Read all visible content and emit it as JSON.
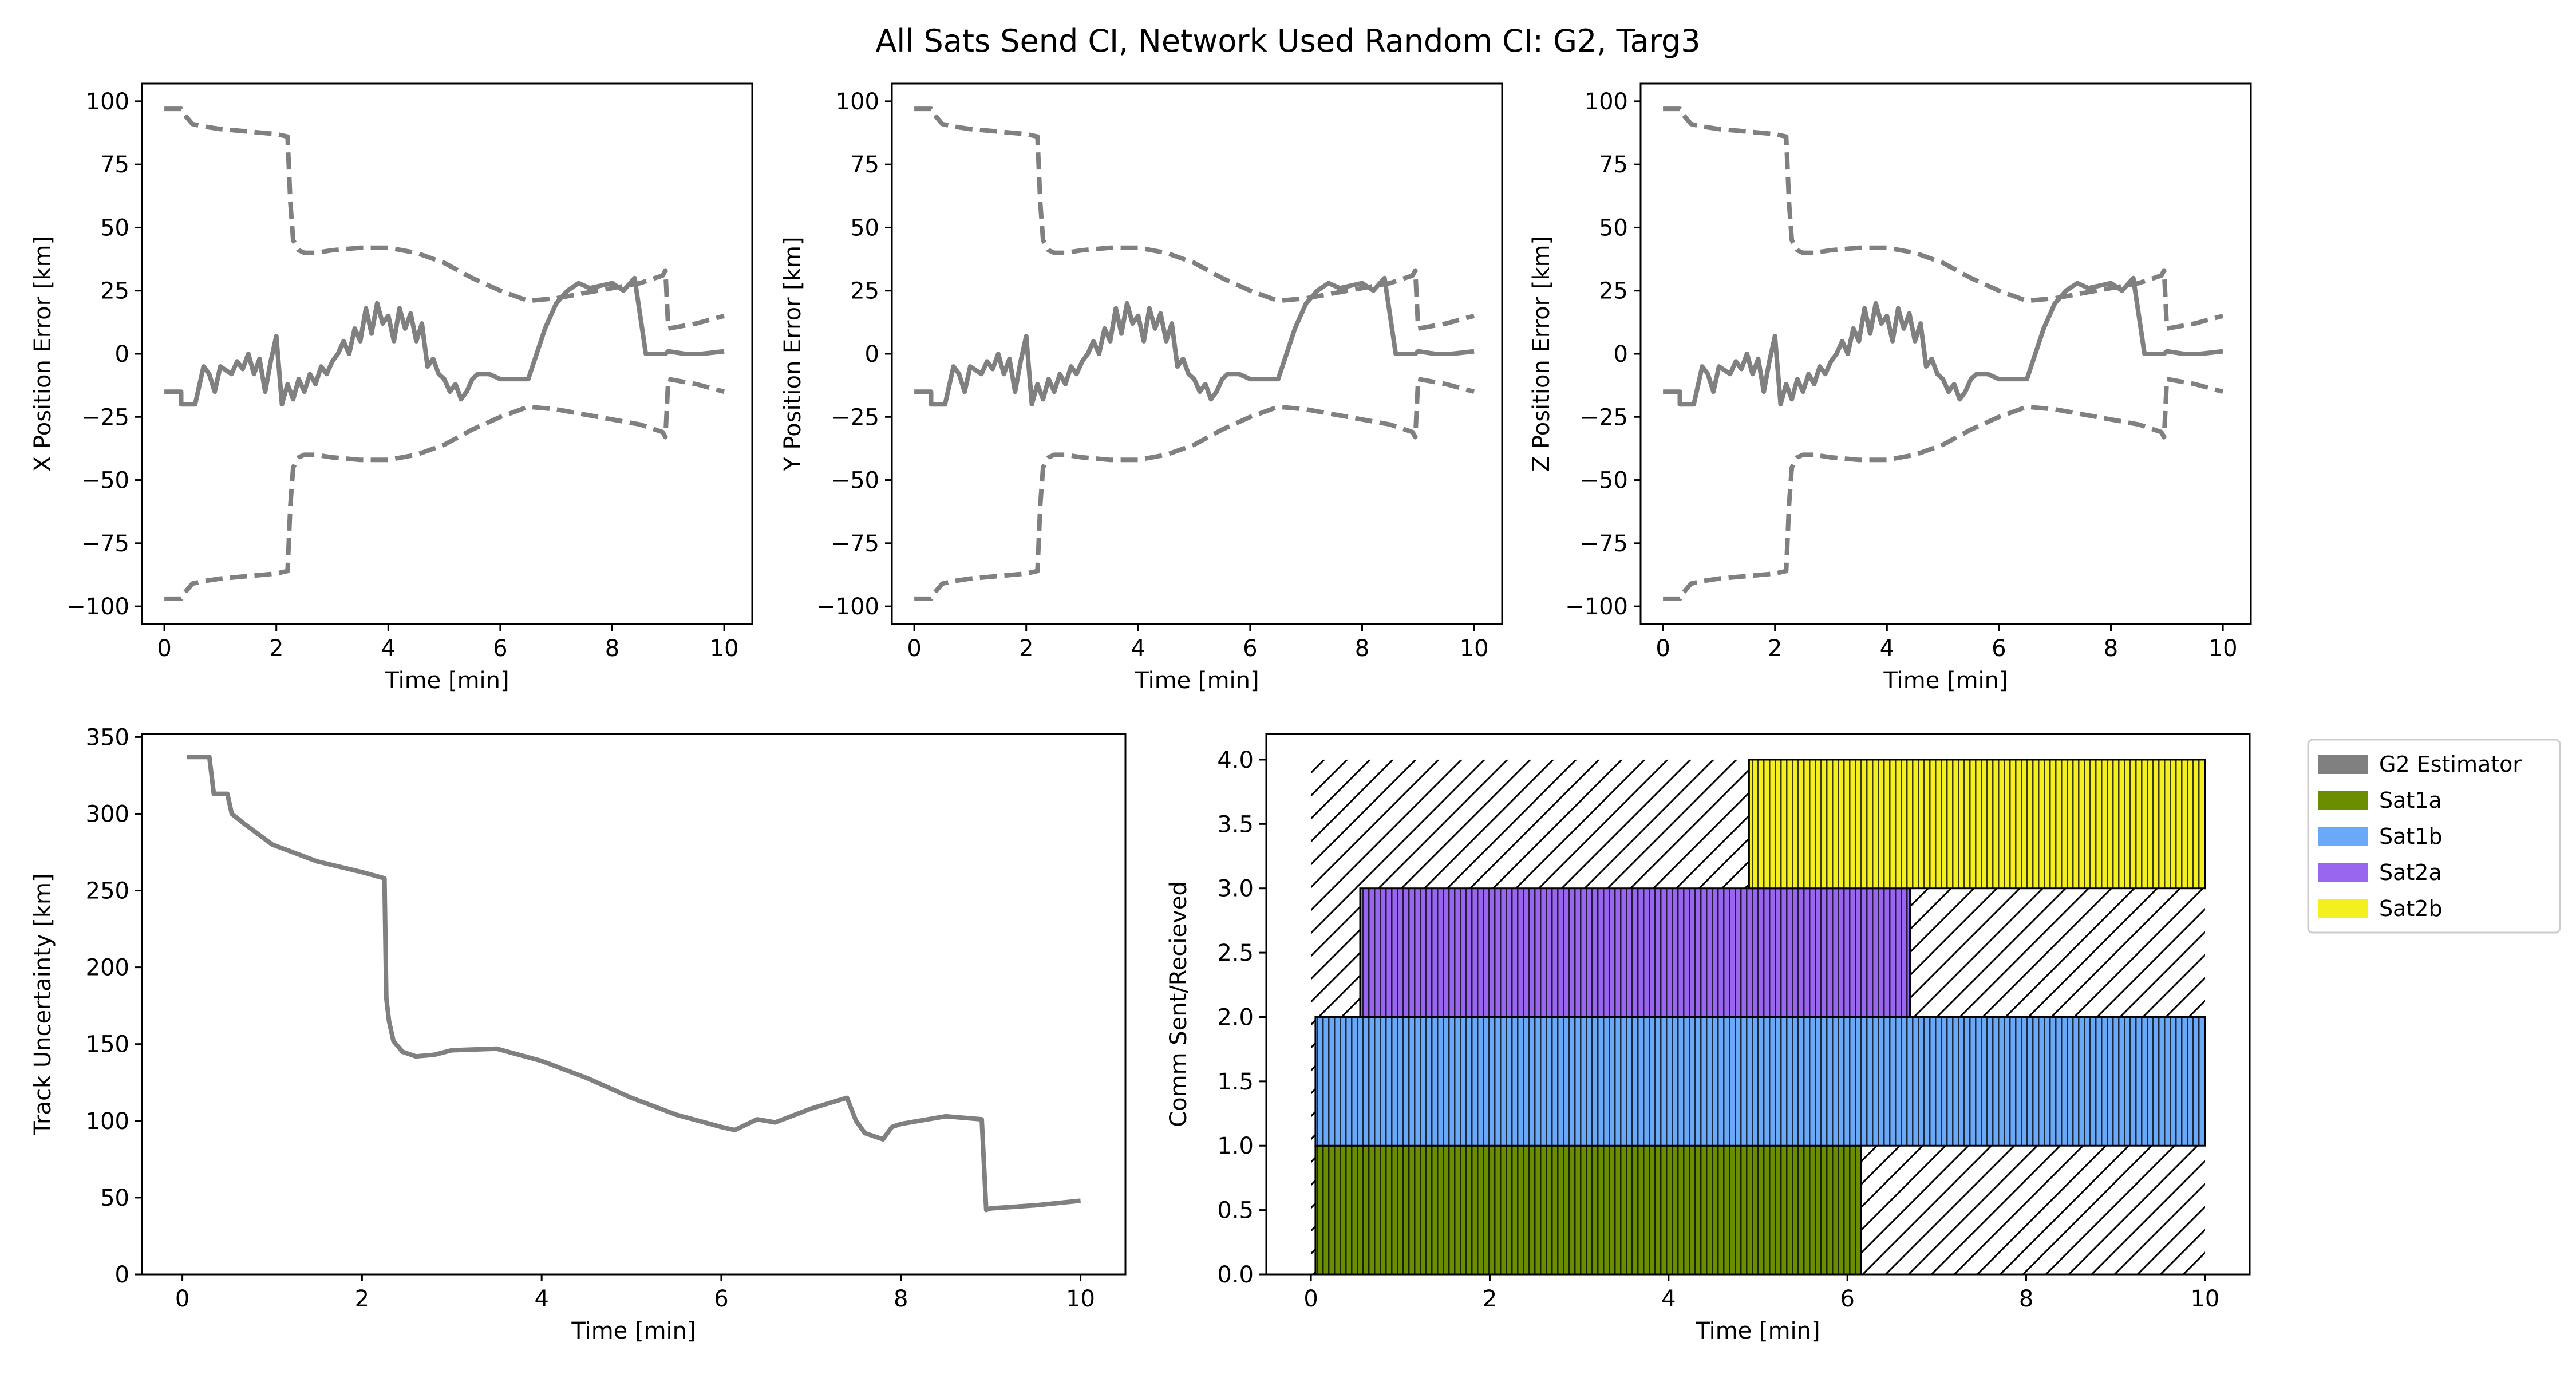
{
  "title": "All Sats Send CI, Network Used Random CI: G2, Targ3",
  "colors": {
    "estimator": "#808080",
    "sat1a": "#6b8e00",
    "sat1b": "#6aa8f8",
    "sat2a": "#9966f0",
    "sat2b": "#f4f020"
  },
  "chart_data": [
    {
      "type": "line",
      "xlabel": "Time [min]",
      "ylabel": "X Position Error [km]",
      "xlim": [
        -0.4,
        10.5
      ],
      "ylim": [
        -107,
        107
      ],
      "xticks": [
        0,
        2,
        4,
        6,
        8,
        10
      ],
      "yticks": [
        100,
        75,
        50,
        25,
        0,
        -25,
        -50,
        -75,
        -100
      ],
      "series": [
        {
          "style": "solid",
          "x": [
            0.0,
            0.3,
            0.3,
            0.55,
            0.7,
            0.8,
            0.9,
            1.0,
            1.2,
            1.3,
            1.4,
            1.5,
            1.6,
            1.7,
            1.8,
            1.9,
            2.0,
            2.1,
            2.2,
            2.3,
            2.4,
            2.5,
            2.6,
            2.7,
            2.8,
            2.9,
            3.0,
            3.1,
            3.2,
            3.3,
            3.4,
            3.5,
            3.6,
            3.7,
            3.8,
            3.9,
            4.0,
            4.1,
            4.2,
            4.3,
            4.4,
            4.5,
            4.6,
            4.7,
            4.8,
            4.9,
            5.0,
            5.1,
            5.2,
            5.3,
            5.4,
            5.5,
            5.6,
            5.7,
            5.8,
            5.9,
            6.0,
            6.2,
            6.5,
            6.8,
            7.0,
            7.2,
            7.4,
            7.6,
            7.8,
            8.0,
            8.2,
            8.4,
            8.6,
            8.8,
            8.9,
            8.95,
            9.0,
            9.3,
            9.6,
            10.0
          ],
          "y": [
            -15,
            -15,
            -20,
            -20,
            -5,
            -8,
            -15,
            -5,
            -8,
            -3,
            -6,
            0,
            -8,
            -2,
            -15,
            -3,
            7,
            -20,
            -12,
            -18,
            -10,
            -15,
            -8,
            -12,
            -5,
            -8,
            -3,
            0,
            5,
            0,
            10,
            5,
            18,
            8,
            20,
            12,
            15,
            5,
            18,
            10,
            16,
            5,
            12,
            -5,
            -2,
            -8,
            -10,
            -15,
            -12,
            -18,
            -15,
            -10,
            -8,
            -8,
            -8,
            -9,
            -10,
            -10,
            -10,
            10,
            20,
            25,
            28,
            26,
            27,
            28,
            25,
            30,
            0,
            0,
            0,
            0,
            1,
            0,
            0,
            1
          ]
        },
        {
          "style": "dashed",
          "x": [
            0.0,
            0.3,
            0.35,
            0.5,
            0.7,
            1.0,
            1.5,
            2.0,
            2.2,
            2.25,
            2.3,
            2.4,
            2.5,
            2.7,
            3.0,
            3.5,
            4.0,
            4.5,
            5.0,
            5.5,
            6.0,
            6.5,
            7.0,
            7.5,
            8.0,
            8.5,
            8.9,
            8.95,
            9.0,
            9.5,
            10.0
          ],
          "y": [
            97,
            97,
            95,
            91,
            90,
            89,
            88,
            87,
            86,
            60,
            45,
            41,
            40,
            40,
            41,
            42,
            42,
            40,
            36,
            30,
            25,
            21,
            22,
            24,
            26,
            28,
            31,
            33,
            10,
            12,
            15
          ]
        },
        {
          "style": "dashed",
          "x": [
            0.0,
            0.3,
            0.35,
            0.5,
            0.7,
            1.0,
            1.5,
            2.0,
            2.2,
            2.25,
            2.3,
            2.4,
            2.5,
            2.7,
            3.0,
            3.5,
            4.0,
            4.5,
            5.0,
            5.5,
            6.0,
            6.5,
            7.0,
            7.5,
            8.0,
            8.5,
            8.9,
            8.95,
            9.0,
            9.5,
            10.0
          ],
          "y": [
            -97,
            -97,
            -95,
            -91,
            -90,
            -89,
            -88,
            -87,
            -86,
            -60,
            -45,
            -41,
            -40,
            -40,
            -41,
            -42,
            -42,
            -40,
            -36,
            -30,
            -25,
            -21,
            -22,
            -24,
            -26,
            -28,
            -31,
            -33,
            -10,
            -12,
            -15
          ]
        }
      ]
    },
    {
      "type": "line",
      "xlabel": "Time [min]",
      "ylabel": "Y Position Error [km]",
      "xlim": [
        -0.4,
        10.5
      ],
      "ylim": [
        -107,
        107
      ],
      "xticks": [
        0,
        2,
        4,
        6,
        8,
        10
      ],
      "yticks": [
        100,
        75,
        50,
        25,
        0,
        -25,
        -50,
        -75,
        -100
      ],
      "series": [
        {
          "style": "solid",
          "x": [
            0.0,
            0.3,
            0.3,
            0.55,
            0.7,
            0.8,
            0.9,
            1.0,
            1.2,
            1.3,
            1.4,
            1.5,
            1.6,
            1.7,
            1.8,
            1.9,
            2.0,
            2.1,
            2.2,
            2.3,
            2.4,
            2.5,
            2.6,
            2.7,
            2.8,
            2.9,
            3.0,
            3.1,
            3.2,
            3.3,
            3.4,
            3.5,
            3.6,
            3.7,
            3.8,
            3.9,
            4.0,
            4.1,
            4.2,
            4.3,
            4.4,
            4.5,
            4.6,
            4.7,
            4.8,
            4.9,
            5.0,
            5.1,
            5.2,
            5.3,
            5.4,
            5.5,
            5.6,
            5.7,
            5.8,
            5.9,
            6.0,
            6.2,
            6.5,
            6.8,
            7.0,
            7.2,
            7.4,
            7.6,
            7.8,
            8.0,
            8.2,
            8.4,
            8.6,
            8.8,
            8.9,
            8.95,
            9.0,
            9.3,
            9.6,
            10.0
          ],
          "y": [
            -15,
            -15,
            -20,
            -20,
            -5,
            -8,
            -15,
            -5,
            -8,
            -3,
            -6,
            0,
            -8,
            -2,
            -15,
            -3,
            7,
            -20,
            -12,
            -18,
            -10,
            -15,
            -8,
            -12,
            -5,
            -8,
            -3,
            0,
            5,
            0,
            10,
            5,
            18,
            8,
            20,
            12,
            15,
            5,
            18,
            10,
            16,
            5,
            12,
            -5,
            -2,
            -8,
            -10,
            -15,
            -12,
            -18,
            -15,
            -10,
            -8,
            -8,
            -8,
            -9,
            -10,
            -10,
            -10,
            10,
            20,
            25,
            28,
            26,
            27,
            28,
            25,
            30,
            0,
            0,
            0,
            0,
            1,
            0,
            0,
            1
          ]
        },
        {
          "style": "dashed",
          "x": [
            0.0,
            0.3,
            0.35,
            0.5,
            0.7,
            1.0,
            1.5,
            2.0,
            2.2,
            2.25,
            2.3,
            2.4,
            2.5,
            2.7,
            3.0,
            3.5,
            4.0,
            4.5,
            5.0,
            5.5,
            6.0,
            6.5,
            7.0,
            7.5,
            8.0,
            8.5,
            8.9,
            8.95,
            9.0,
            9.5,
            10.0
          ],
          "y": [
            97,
            97,
            95,
            91,
            90,
            89,
            88,
            87,
            86,
            60,
            45,
            41,
            40,
            40,
            41,
            42,
            42,
            40,
            36,
            30,
            25,
            21,
            22,
            24,
            26,
            28,
            31,
            33,
            10,
            12,
            15
          ]
        },
        {
          "style": "dashed",
          "x": [
            0.0,
            0.3,
            0.35,
            0.5,
            0.7,
            1.0,
            1.5,
            2.0,
            2.2,
            2.25,
            2.3,
            2.4,
            2.5,
            2.7,
            3.0,
            3.5,
            4.0,
            4.5,
            5.0,
            5.5,
            6.0,
            6.5,
            7.0,
            7.5,
            8.0,
            8.5,
            8.9,
            8.95,
            9.0,
            9.5,
            10.0
          ],
          "y": [
            -97,
            -97,
            -95,
            -91,
            -90,
            -89,
            -88,
            -87,
            -86,
            -60,
            -45,
            -41,
            -40,
            -40,
            -41,
            -42,
            -42,
            -40,
            -36,
            -30,
            -25,
            -21,
            -22,
            -24,
            -26,
            -28,
            -31,
            -33,
            -10,
            -12,
            -15
          ]
        }
      ]
    },
    {
      "type": "line",
      "xlabel": "Time [min]",
      "ylabel": "Z Position Error [km]",
      "xlim": [
        -0.4,
        10.5
      ],
      "ylim": [
        -107,
        107
      ],
      "xticks": [
        0,
        2,
        4,
        6,
        8,
        10
      ],
      "yticks": [
        100,
        75,
        50,
        25,
        0,
        -25,
        -50,
        -75,
        -100
      ],
      "series": [
        {
          "style": "solid",
          "x": [
            0.0,
            0.3,
            0.3,
            0.55,
            0.7,
            0.8,
            0.9,
            1.0,
            1.2,
            1.3,
            1.4,
            1.5,
            1.6,
            1.7,
            1.8,
            1.9,
            2.0,
            2.1,
            2.2,
            2.3,
            2.4,
            2.5,
            2.6,
            2.7,
            2.8,
            2.9,
            3.0,
            3.1,
            3.2,
            3.3,
            3.4,
            3.5,
            3.6,
            3.7,
            3.8,
            3.9,
            4.0,
            4.1,
            4.2,
            4.3,
            4.4,
            4.5,
            4.6,
            4.7,
            4.8,
            4.9,
            5.0,
            5.1,
            5.2,
            5.3,
            5.4,
            5.5,
            5.6,
            5.7,
            5.8,
            5.9,
            6.0,
            6.2,
            6.5,
            6.8,
            7.0,
            7.2,
            7.4,
            7.6,
            7.8,
            8.0,
            8.2,
            8.4,
            8.6,
            8.8,
            8.9,
            8.95,
            9.0,
            9.3,
            9.6,
            10.0
          ],
          "y": [
            -15,
            -15,
            -20,
            -20,
            -5,
            -8,
            -15,
            -5,
            -8,
            -3,
            -6,
            0,
            -8,
            -2,
            -15,
            -3,
            7,
            -20,
            -12,
            -18,
            -10,
            -15,
            -8,
            -12,
            -5,
            -8,
            -3,
            0,
            5,
            0,
            10,
            5,
            18,
            8,
            20,
            12,
            15,
            5,
            18,
            10,
            16,
            5,
            12,
            -5,
            -2,
            -8,
            -10,
            -15,
            -12,
            -18,
            -15,
            -10,
            -8,
            -8,
            -8,
            -9,
            -10,
            -10,
            -10,
            10,
            20,
            25,
            28,
            26,
            27,
            28,
            25,
            30,
            0,
            0,
            0,
            0,
            1,
            0,
            0,
            1
          ]
        },
        {
          "style": "dashed",
          "x": [
            0.0,
            0.3,
            0.35,
            0.5,
            0.7,
            1.0,
            1.5,
            2.0,
            2.2,
            2.25,
            2.3,
            2.4,
            2.5,
            2.7,
            3.0,
            3.5,
            4.0,
            4.5,
            5.0,
            5.5,
            6.0,
            6.5,
            7.0,
            7.5,
            8.0,
            8.5,
            8.9,
            8.95,
            9.0,
            9.5,
            10.0
          ],
          "y": [
            97,
            97,
            95,
            91,
            90,
            89,
            88,
            87,
            86,
            60,
            45,
            41,
            40,
            40,
            41,
            42,
            42,
            40,
            36,
            30,
            25,
            21,
            22,
            24,
            26,
            28,
            31,
            33,
            10,
            12,
            15
          ]
        },
        {
          "style": "dashed",
          "x": [
            0.0,
            0.3,
            0.35,
            0.5,
            0.7,
            1.0,
            1.5,
            2.0,
            2.2,
            2.25,
            2.3,
            2.4,
            2.5,
            2.7,
            3.0,
            3.5,
            4.0,
            4.5,
            5.0,
            5.5,
            6.0,
            6.5,
            7.0,
            7.5,
            8.0,
            8.5,
            8.9,
            8.95,
            9.0,
            9.5,
            10.0
          ],
          "y": [
            -97,
            -97,
            -95,
            -91,
            -90,
            -89,
            -88,
            -87,
            -86,
            -60,
            -45,
            -41,
            -40,
            -40,
            -41,
            -42,
            -42,
            -40,
            -36,
            -30,
            -25,
            -21,
            -22,
            -24,
            -26,
            -28,
            -31,
            -33,
            -10,
            -12,
            -15
          ]
        }
      ]
    },
    {
      "type": "line",
      "xlabel": "Time [min]",
      "ylabel": "Track Uncertainty [km]",
      "xlim": [
        -0.45,
        10.5
      ],
      "ylim": [
        0,
        352
      ],
      "xticks": [
        0,
        2,
        4,
        6,
        8,
        10
      ],
      "yticks": [
        0,
        50,
        100,
        150,
        200,
        250,
        300,
        350
      ],
      "series": [
        {
          "style": "solid",
          "x": [
            0.05,
            0.3,
            0.35,
            0.5,
            0.55,
            0.7,
            1.0,
            1.5,
            2.0,
            2.25,
            2.27,
            2.3,
            2.35,
            2.45,
            2.6,
            2.8,
            3.0,
            3.5,
            4.0,
            4.5,
            5.0,
            5.5,
            6.0,
            6.15,
            6.4,
            6.5,
            6.6,
            7.0,
            7.4,
            7.5,
            7.6,
            7.8,
            7.9,
            8.0,
            8.5,
            8.9,
            8.95,
            9.0,
            9.5,
            10.0
          ],
          "y": [
            337,
            337,
            313,
            313,
            300,
            293,
            280,
            269,
            262,
            258,
            180,
            165,
            152,
            145,
            142,
            143,
            146,
            147,
            139,
            128,
            115,
            104,
            96,
            94,
            101,
            100,
            99,
            108,
            115,
            100,
            92,
            88,
            96,
            98,
            103,
            101,
            42,
            43,
            45,
            48
          ]
        }
      ]
    },
    {
      "type": "bar",
      "xlabel": "Time [min]",
      "ylabel": "Comm Sent/Recieved",
      "xlim": [
        -0.5,
        10.5
      ],
      "ylim": [
        0,
        4.2
      ],
      "xticks": [
        0,
        2,
        4,
        6,
        8,
        10
      ],
      "yticks": [
        0.0,
        0.5,
        1.0,
        1.5,
        2.0,
        2.5,
        3.0,
        3.5,
        4.0
      ],
      "hatched_rows": [
        {
          "row": 1,
          "x_start": 0.0,
          "x_end": 10.0
        },
        {
          "row": 2,
          "x_start": 0.0,
          "x_end": 10.0
        },
        {
          "row": 3,
          "x_start": 0.0,
          "x_end": 10.0
        },
        {
          "row": 4,
          "x_start": 0.0,
          "x_end": 10.0
        }
      ],
      "bars": [
        {
          "name": "Sat1a",
          "row": 1,
          "x_start": 0.05,
          "x_end": 6.15
        },
        {
          "name": "Sat1b",
          "row": 2,
          "x_start": 0.05,
          "x_end": 10.0
        },
        {
          "name": "Sat2a",
          "row": 3,
          "x_start": 0.55,
          "x_end": 6.7
        },
        {
          "name": "Sat2b",
          "row": 4,
          "x_start": 4.9,
          "x_end": 10.0
        }
      ],
      "legend": {
        "placement": "outside-right-top",
        "entries": [
          "G2 Estimator",
          "Sat1a",
          "Sat1b",
          "Sat2a",
          "Sat2b"
        ]
      }
    }
  ]
}
